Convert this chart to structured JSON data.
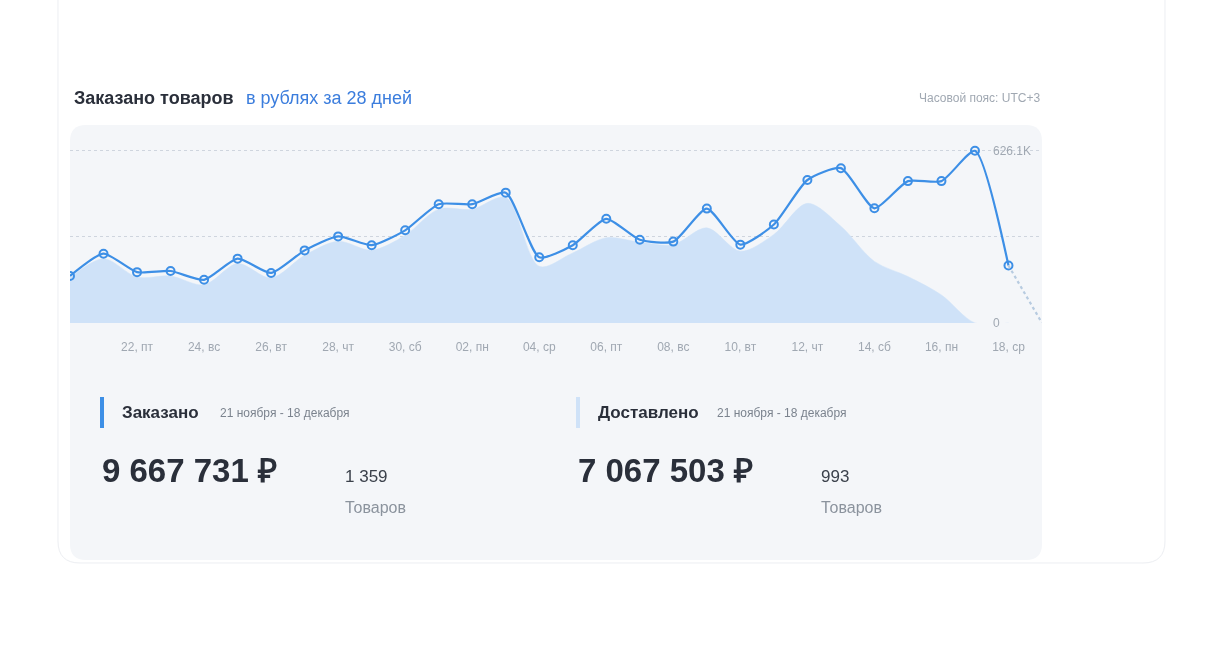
{
  "chart_data": {
    "type": "line",
    "title": "Заказано товаров",
    "subtitle": "в рублях за 28 дней",
    "x": [
      "--11-20",
      "--11-21",
      "--11-22",
      "--11-23",
      "--11-24",
      "--11-25",
      "--11-26",
      "--11-27",
      "--11-28",
      "--11-29",
      "--11-30",
      "--12-01",
      "--12-02",
      "--12-03",
      "--12-04",
      "--12-05",
      "--12-06",
      "--12-07",
      "--12-08",
      "--12-09",
      "--12-10",
      "--12-11",
      "--12-12",
      "--12-13",
      "--12-14",
      "--12-15",
      "--12-16",
      "--12-17",
      "--12-18"
    ],
    "xlim": [
      "--11-20",
      "--12-19"
    ],
    "xticks": [
      {
        "value": "--11-22",
        "label": "22, пт"
      },
      {
        "value": "--11-24",
        "label": "24, вс"
      },
      {
        "value": "--11-26",
        "label": "26, вт"
      },
      {
        "value": "--11-28",
        "label": "28, чт"
      },
      {
        "value": "--11-30",
        "label": "30, сб"
      },
      {
        "value": "--12-02",
        "label": "02, пн"
      },
      {
        "value": "--12-04",
        "label": "04, ср"
      },
      {
        "value": "--12-06",
        "label": "06, пт"
      },
      {
        "value": "--12-08",
        "label": "08, вс"
      },
      {
        "value": "--12-10",
        "label": "10, вт"
      },
      {
        "value": "--12-12",
        "label": "12, чт"
      },
      {
        "value": "--12-14",
        "label": "14, сб"
      },
      {
        "value": "--12-16",
        "label": "16, пн"
      },
      {
        "value": "--12-18",
        "label": "18, ср"
      }
    ],
    "ylim": [
      0,
      720000
    ],
    "yticks": [
      0,
      {
        "value": 313050,
        "label": null
      },
      {
        "value": 626100,
        "label": "626.1K"
      }
    ],
    "grid": "y",
    "legend": "bottom",
    "series": [
      {
        "name": "Заказано",
        "color": "#3d8fe6",
        "marker": "circle",
        "values": [
          171000,
          252000,
          185000,
          189000,
          157000,
          234000,
          182000,
          264000,
          315000,
          283000,
          337000,
          432000,
          432000,
          474000,
          239000,
          283000,
          379000,
          303000,
          296000,
          416000,
          285000,
          358000,
          520000,
          563000,
          417000,
          516000,
          516000,
          626100,
          209000
        ]
      },
      {
        "name": "Доставлено",
        "type": "area",
        "color": "#cfe2f8",
        "values": [
          165000,
          234000,
          167000,
          171000,
          139000,
          216000,
          164000,
          246000,
          297000,
          265000,
          319000,
          414000,
          414000,
          456000,
          206000,
          255000,
          310000,
          294000,
          285000,
          346000,
          261000,
          322000,
          435000,
          352000,
          224000,
          169000,
          102000,
          0,
          0
        ]
      },
      {
        "type": "line",
        "color": "#b7cbe0",
        "marker": "none",
        "line_style": "dotted",
        "x": [
          "--12-18",
          "--12-19"
        ],
        "values": [
          209000,
          0
        ]
      }
    ],
    "annotations": [
      "Часовой пояс: UTC+3",
      "21 ноября - 18 декабря",
      "9 667 731 ₽",
      "1 359",
      "Товаров",
      "21 ноября - 18 декабря",
      "7 067 503 ₽",
      "993",
      "Товаров"
    ]
  }
}
